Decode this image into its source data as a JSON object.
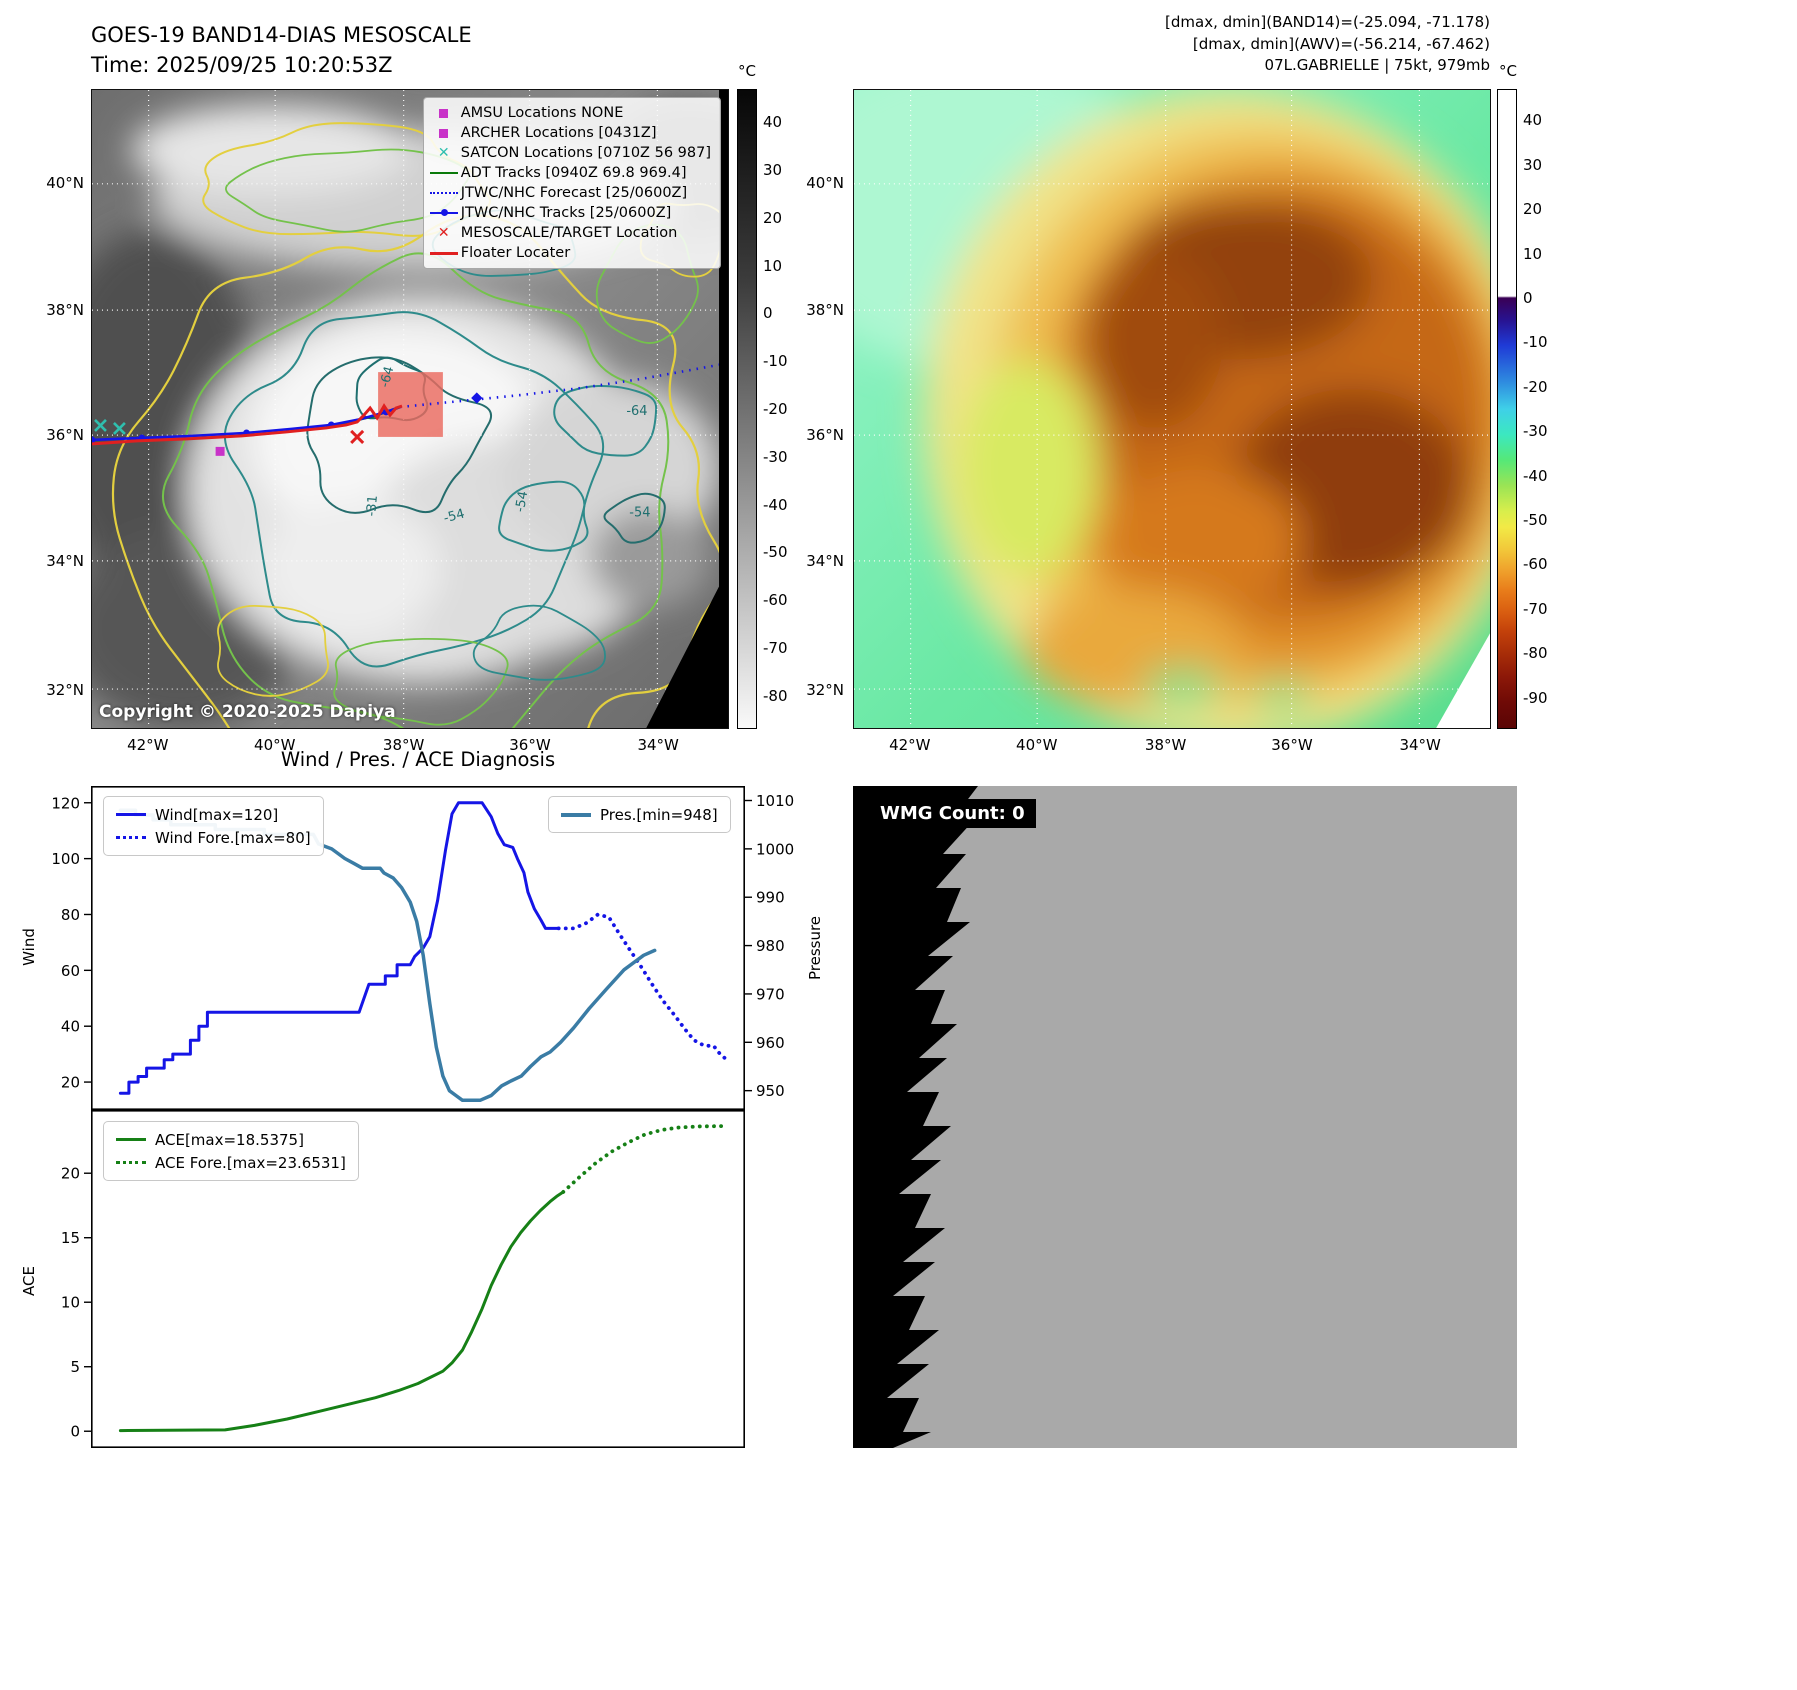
{
  "band14": {
    "title": "GOES-19 BAND14-DIAS MESOSCALE",
    "time_line": "Time: 2025/09/25 10:20:53Z",
    "copyright": "Copyright © 2020-2025 Dapiya",
    "colorbar_unit": "°C",
    "colorbar_ticks": [
      "40",
      "30",
      "20",
      "10",
      "0",
      "-10",
      "-20",
      "-30",
      "-40",
      "-50",
      "-60",
      "-70",
      "-80"
    ],
    "lat_ticks": [
      "40°N",
      "38°N",
      "36°N",
      "34°N",
      "32°N"
    ],
    "lon_ticks": [
      "42°W",
      "40°W",
      "38°W",
      "36°W",
      "34°W"
    ],
    "legend": [
      {
        "label": "AMSU Locations NONE"
      },
      {
        "label": "ARCHER Locations [0431Z]"
      },
      {
        "label": "SATCON Locations [0710Z 56 987]"
      },
      {
        "label": "ADT Tracks [0940Z 69.8 969.4]"
      },
      {
        "label": "JTWC/NHC Forecast [25/0600Z]"
      },
      {
        "label": "JTWC/NHC Tracks [25/0600Z]"
      },
      {
        "label": "MESOSCALE/TARGET Location"
      },
      {
        "label": "Floater Locater"
      }
    ],
    "contour_labels": [
      "-64",
      "-54",
      "-54",
      "-31",
      "-64",
      "-54"
    ]
  },
  "awv": {
    "header_lines": [
      "[dmax, dmin](BAND14)=(-25.094, -71.178)",
      "[dmax, dmin](AWV)=(-56.214, -67.462)",
      "07L.GABRIELLE | 75kt, 979mb"
    ],
    "colorbar_unit": "°C",
    "colorbar_ticks": [
      "40",
      "30",
      "20",
      "10",
      "0",
      "-10",
      "-20",
      "-30",
      "-40",
      "-50",
      "-60",
      "-70",
      "-80",
      "-90"
    ],
    "lat_ticks": [
      "40°N",
      "38°N",
      "36°N",
      "34°N",
      "32°N"
    ],
    "lon_ticks": [
      "42°W",
      "40°W",
      "38°W",
      "36°W",
      "34°W"
    ]
  },
  "diagnosis": {
    "title": "Wind / Pres. / ACE Diagnosis",
    "ylabel_wind": "Wind",
    "ylabel_pressure": "Pressure",
    "ylabel_ace": "ACE"
  },
  "wmg": {
    "count_label": "WMG Count: 0"
  },
  "chart_data": [
    {
      "type": "line",
      "title": "Wind / Pres. / ACE Diagnosis (top subplot)",
      "xlim": [
        0,
        1
      ],
      "x_note": "time axis, no tick labels shown",
      "ylabel_left": "Wind",
      "ylabel_right": "Pressure",
      "ylim_left": [
        10,
        126
      ],
      "ylim_right": [
        946,
        1013
      ],
      "yticks_left": [
        120,
        100,
        80,
        60,
        40,
        20
      ],
      "yticks_right": [
        1010,
        1000,
        990,
        980,
        970,
        960,
        950
      ],
      "legend_position": "upper left / upper right",
      "series": [
        {
          "name": "Wind[max=120]",
          "axis": "left",
          "style": "solid",
          "color": "#1515e6",
          "width": 3,
          "points": [
            [
              0.045,
              16
            ],
            [
              0.058,
              16
            ],
            [
              0.058,
              20
            ],
            [
              0.072,
              20
            ],
            [
              0.072,
              22
            ],
            [
              0.085,
              22
            ],
            [
              0.085,
              25
            ],
            [
              0.112,
              25
            ],
            [
              0.112,
              28
            ],
            [
              0.125,
              28
            ],
            [
              0.125,
              30
            ],
            [
              0.152,
              30
            ],
            [
              0.152,
              35
            ],
            [
              0.165,
              35
            ],
            [
              0.165,
              40
            ],
            [
              0.178,
              40
            ],
            [
              0.178,
              45
            ],
            [
              0.225,
              45
            ],
            [
              0.41,
              45
            ],
            [
              0.425,
              55
            ],
            [
              0.45,
              55
            ],
            [
              0.45,
              58
            ],
            [
              0.468,
              58
            ],
            [
              0.468,
              62
            ],
            [
              0.488,
              62
            ],
            [
              0.495,
              65
            ],
            [
              0.508,
              68
            ],
            [
              0.518,
              72
            ],
            [
              0.53,
              85
            ],
            [
              0.542,
              103
            ],
            [
              0.552,
              116
            ],
            [
              0.562,
              120
            ],
            [
              0.598,
              120
            ],
            [
              0.612,
              115
            ],
            [
              0.622,
              109
            ],
            [
              0.632,
              105
            ],
            [
              0.645,
              104
            ],
            [
              0.652,
              100
            ],
            [
              0.662,
              95
            ],
            [
              0.668,
              88
            ],
            [
              0.678,
              82
            ],
            [
              0.688,
              78
            ],
            [
              0.695,
              75
            ],
            [
              0.715,
              75
            ]
          ]
        },
        {
          "name": "Wind Fore.[max=80]",
          "axis": "left",
          "style": "dotted",
          "color": "#1515e6",
          "width": 3,
          "points": [
            [
              0.715,
              75
            ],
            [
              0.738,
              75
            ],
            [
              0.758,
              77
            ],
            [
              0.775,
              80
            ],
            [
              0.792,
              79
            ],
            [
              0.808,
              73
            ],
            [
              0.825,
              67
            ],
            [
              0.842,
              61
            ],
            [
              0.858,
              55
            ],
            [
              0.875,
              49
            ],
            [
              0.892,
              44
            ],
            [
              0.908,
              39
            ],
            [
              0.922,
              35
            ],
            [
              0.938,
              33
            ],
            [
              0.952,
              33
            ],
            [
              0.962,
              30
            ],
            [
              0.972,
              28
            ]
          ]
        },
        {
          "name": "Pres.[min=948]",
          "axis": "right",
          "style": "solid",
          "color": "#3a7ca5",
          "width": 3.5,
          "points": [
            [
              0.045,
              1008
            ],
            [
              0.068,
              1008
            ],
            [
              0.068,
              1007
            ],
            [
              0.095,
              1007
            ],
            [
              0.095,
              1006
            ],
            [
              0.122,
              1006
            ],
            [
              0.122,
              1005
            ],
            [
              0.19,
              1005
            ],
            [
              0.19,
              1004
            ],
            [
              0.265,
              1004
            ],
            [
              0.265,
              1003
            ],
            [
              0.34,
              1003
            ],
            [
              0.348,
              1001
            ],
            [
              0.368,
              1000
            ],
            [
              0.388,
              998
            ],
            [
              0.402,
              997
            ],
            [
              0.415,
              996
            ],
            [
              0.442,
              996
            ],
            [
              0.448,
              995
            ],
            [
              0.462,
              994
            ],
            [
              0.475,
              992
            ],
            [
              0.488,
              989
            ],
            [
              0.498,
              985
            ],
            [
              0.508,
              978
            ],
            [
              0.518,
              968
            ],
            [
              0.528,
              959
            ],
            [
              0.538,
              953
            ],
            [
              0.548,
              950
            ],
            [
              0.558,
              949
            ],
            [
              0.568,
              948
            ],
            [
              0.595,
              948
            ],
            [
              0.612,
              949
            ],
            [
              0.628,
              951
            ],
            [
              0.642,
              952
            ],
            [
              0.658,
              953
            ],
            [
              0.672,
              955
            ],
            [
              0.688,
              957
            ],
            [
              0.702,
              958
            ],
            [
              0.718,
              960
            ],
            [
              0.738,
              963
            ],
            [
              0.762,
              967
            ],
            [
              0.788,
              971
            ],
            [
              0.815,
              975
            ],
            [
              0.845,
              978
            ],
            [
              0.862,
              979
            ]
          ]
        }
      ]
    },
    {
      "type": "line",
      "title": "ACE subplot",
      "xlim": [
        0,
        1
      ],
      "ylabel_left": "ACE",
      "ylim_left": [
        -1.3,
        24.9
      ],
      "yticks_left": [
        20,
        15,
        10,
        5,
        0
      ],
      "legend_position": "upper left",
      "series": [
        {
          "name": "ACE[max=18.5375]",
          "axis": "left",
          "style": "solid",
          "color": "#168016",
          "width": 3,
          "points": [
            [
              0.045,
              0.05
            ],
            [
              0.205,
              0.1
            ],
            [
              0.25,
              0.45
            ],
            [
              0.3,
              0.95
            ],
            [
              0.35,
              1.55
            ],
            [
              0.395,
              2.1
            ],
            [
              0.435,
              2.6
            ],
            [
              0.47,
              3.15
            ],
            [
              0.5,
              3.7
            ],
            [
              0.52,
              4.2
            ],
            [
              0.538,
              4.65
            ],
            [
              0.552,
              5.3
            ],
            [
              0.568,
              6.3
            ],
            [
              0.582,
              7.7
            ],
            [
              0.598,
              9.5
            ],
            [
              0.612,
              11.3
            ],
            [
              0.627,
              12.9
            ],
            [
              0.642,
              14.3
            ],
            [
              0.657,
              15.4
            ],
            [
              0.672,
              16.3
            ],
            [
              0.687,
              17.1
            ],
            [
              0.702,
              17.8
            ],
            [
              0.712,
              18.2
            ],
            [
              0.722,
              18.54
            ]
          ]
        },
        {
          "name": "ACE Fore.[max=23.6531]",
          "axis": "left",
          "style": "dotted",
          "color": "#168016",
          "width": 3,
          "points": [
            [
              0.722,
              18.54
            ],
            [
              0.747,
              19.7
            ],
            [
              0.772,
              20.8
            ],
            [
              0.797,
              21.7
            ],
            [
              0.822,
              22.4
            ],
            [
              0.847,
              23.0
            ],
            [
              0.872,
              23.35
            ],
            [
              0.9,
              23.55
            ],
            [
              0.932,
              23.63
            ],
            [
              0.965,
              23.65
            ]
          ]
        }
      ]
    }
  ]
}
